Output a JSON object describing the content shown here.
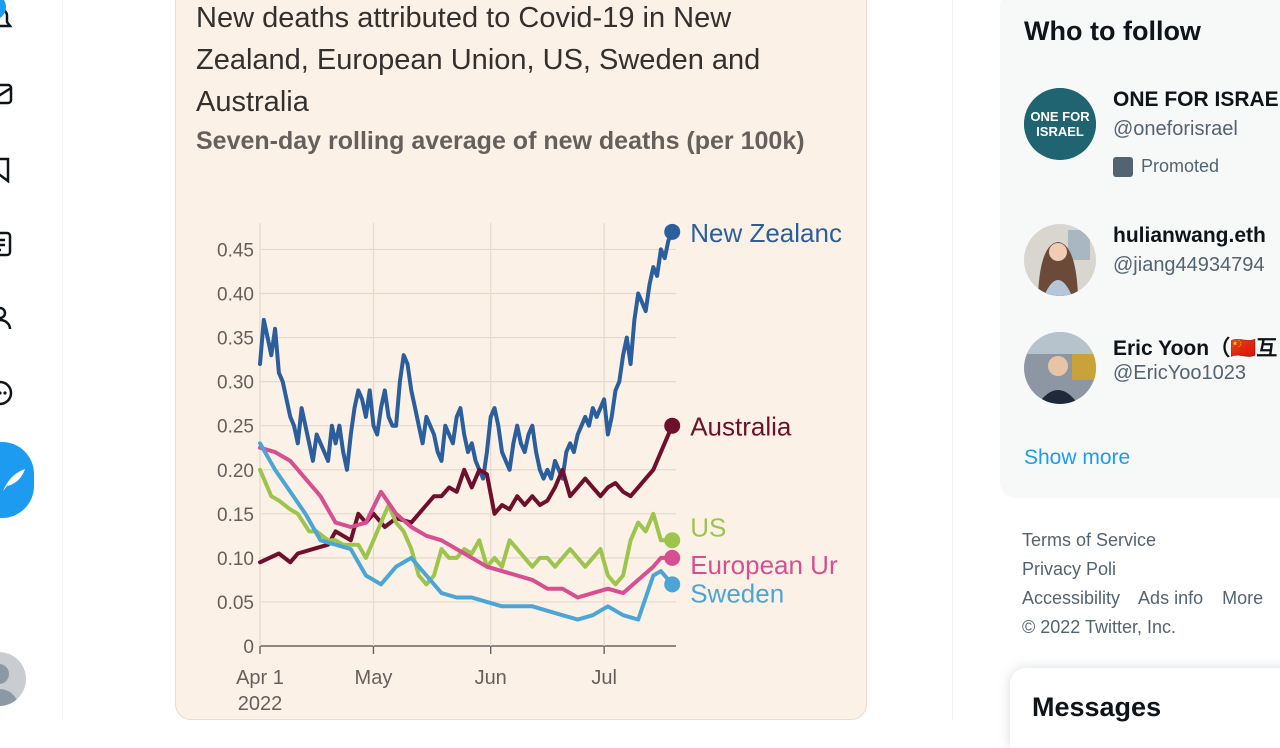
{
  "nav": {
    "notification_count": "1",
    "icons": [
      "bell-icon",
      "envelope-icon",
      "bookmark-icon",
      "list-icon",
      "person-icon",
      "more-circle-icon",
      "tweet-feather-icon"
    ]
  },
  "chart_data": {
    "type": "line",
    "title": "New deaths attributed to Covid-19 in New Zealand, European Union, US, Sweden and Australia",
    "subtitle": "Seven-day rolling average of new deaths (per 100k)",
    "x_ticks": [
      "Apr 1\n2022",
      "May",
      "Jun",
      "Jul"
    ],
    "x_tick_days": [
      0,
      30,
      61,
      91
    ],
    "x_range_days": [
      0,
      110
    ],
    "ylim": [
      0,
      0.48
    ],
    "y_ticks": [
      "0",
      "0.05",
      "0.10",
      "0.15",
      "0.20",
      "0.25",
      "0.30",
      "0.35",
      "0.40",
      "0.45"
    ],
    "y_tick_values": [
      0,
      0.05,
      0.1,
      0.15,
      0.2,
      0.25,
      0.3,
      0.35,
      0.4,
      0.45
    ],
    "grid": true,
    "series": [
      {
        "name": "New Zealand",
        "label": "New Zealanc",
        "color": "#2a5e9c",
        "x": [
          0,
          1,
          2,
          3,
          4,
          5,
          6,
          7,
          8,
          9,
          10,
          11,
          12,
          13,
          14,
          15,
          16,
          17,
          18,
          19,
          20,
          21,
          22,
          23,
          24,
          25,
          26,
          27,
          28,
          29,
          30,
          31,
          32,
          33,
          34,
          35,
          36,
          37,
          38,
          39,
          40,
          41,
          42,
          43,
          44,
          45,
          46,
          47,
          48,
          49,
          50,
          51,
          52,
          53,
          54,
          55,
          56,
          57,
          58,
          59,
          60,
          61,
          62,
          63,
          64,
          65,
          66,
          67,
          68,
          69,
          70,
          71,
          72,
          73,
          74,
          75,
          76,
          77,
          78,
          79,
          80,
          81,
          82,
          83,
          84,
          85,
          86,
          87,
          88,
          89,
          90,
          91,
          92,
          93,
          94,
          95,
          96,
          97,
          98,
          99,
          100,
          101,
          102,
          103,
          104,
          105,
          106,
          107,
          108,
          109
        ],
        "values": [
          0.32,
          0.37,
          0.35,
          0.33,
          0.36,
          0.31,
          0.3,
          0.28,
          0.26,
          0.25,
          0.23,
          0.27,
          0.25,
          0.23,
          0.21,
          0.24,
          0.23,
          0.22,
          0.21,
          0.25,
          0.23,
          0.25,
          0.22,
          0.2,
          0.24,
          0.27,
          0.29,
          0.28,
          0.26,
          0.29,
          0.25,
          0.24,
          0.27,
          0.29,
          0.26,
          0.25,
          0.25,
          0.3,
          0.33,
          0.32,
          0.29,
          0.27,
          0.25,
          0.23,
          0.26,
          0.25,
          0.24,
          0.22,
          0.21,
          0.25,
          0.24,
          0.23,
          0.26,
          0.27,
          0.24,
          0.22,
          0.23,
          0.21,
          0.2,
          0.19,
          0.22,
          0.26,
          0.27,
          0.25,
          0.22,
          0.21,
          0.2,
          0.23,
          0.25,
          0.23,
          0.22,
          0.24,
          0.25,
          0.22,
          0.2,
          0.19,
          0.2,
          0.19,
          0.21,
          0.2,
          0.19,
          0.22,
          0.23,
          0.22,
          0.24,
          0.25,
          0.26,
          0.25,
          0.27,
          0.26,
          0.27,
          0.28,
          0.24,
          0.26,
          0.29,
          0.3,
          0.33,
          0.35,
          0.32,
          0.37,
          0.4,
          0.39,
          0.38,
          0.41,
          0.43,
          0.42,
          0.45,
          0.44,
          0.46,
          0.47
        ]
      },
      {
        "name": "Australia",
        "label": "Australia",
        "color": "#6e0f2b",
        "x": [
          0,
          5,
          8,
          10,
          14,
          18,
          20,
          24,
          26,
          28,
          30,
          33,
          36,
          40,
          44,
          46,
          48,
          50,
          52,
          54,
          56,
          58,
          60,
          62,
          64,
          66,
          68,
          70,
          72,
          74,
          76,
          78,
          80,
          82,
          84,
          86,
          88,
          90,
          92,
          94,
          96,
          98,
          100,
          102,
          104,
          106,
          109
        ],
        "values": [
          0.095,
          0.105,
          0.095,
          0.105,
          0.11,
          0.115,
          0.13,
          0.12,
          0.15,
          0.14,
          0.15,
          0.135,
          0.145,
          0.14,
          0.16,
          0.17,
          0.17,
          0.18,
          0.175,
          0.2,
          0.18,
          0.2,
          0.195,
          0.15,
          0.16,
          0.155,
          0.17,
          0.16,
          0.17,
          0.16,
          0.165,
          0.18,
          0.2,
          0.17,
          0.18,
          0.19,
          0.18,
          0.17,
          0.18,
          0.185,
          0.175,
          0.17,
          0.18,
          0.19,
          0.2,
          0.22,
          0.25
        ]
      },
      {
        "name": "US",
        "label": "US",
        "color": "#9dc44d",
        "x": [
          0,
          3,
          5,
          8,
          10,
          13,
          15,
          18,
          20,
          22,
          24,
          26,
          28,
          30,
          32,
          34,
          36,
          38,
          40,
          42,
          44,
          46,
          48,
          50,
          52,
          54,
          56,
          58,
          60,
          62,
          64,
          66,
          68,
          70,
          72,
          74,
          76,
          78,
          80,
          82,
          84,
          86,
          88,
          90,
          92,
          94,
          96,
          98,
          100,
          102,
          104,
          106,
          109
        ],
        "values": [
          0.2,
          0.17,
          0.165,
          0.155,
          0.15,
          0.13,
          0.13,
          0.12,
          0.12,
          0.115,
          0.115,
          0.115,
          0.1,
          0.12,
          0.14,
          0.16,
          0.14,
          0.13,
          0.11,
          0.08,
          0.07,
          0.08,
          0.11,
          0.1,
          0.1,
          0.11,
          0.105,
          0.12,
          0.09,
          0.1,
          0.09,
          0.12,
          0.11,
          0.1,
          0.09,
          0.1,
          0.1,
          0.09,
          0.1,
          0.11,
          0.1,
          0.09,
          0.1,
          0.11,
          0.08,
          0.07,
          0.08,
          0.12,
          0.14,
          0.13,
          0.15,
          0.12,
          0.12
        ]
      },
      {
        "name": "European Union",
        "label": "European Ur",
        "color": "#d84f91",
        "x": [
          0,
          4,
          8,
          12,
          16,
          20,
          24,
          28,
          32,
          36,
          40,
          44,
          48,
          52,
          56,
          60,
          64,
          68,
          72,
          76,
          80,
          84,
          88,
          92,
          96,
          100,
          104,
          106,
          109
        ],
        "values": [
          0.225,
          0.22,
          0.21,
          0.19,
          0.17,
          0.14,
          0.135,
          0.14,
          0.175,
          0.15,
          0.135,
          0.125,
          0.12,
          0.11,
          0.1,
          0.09,
          0.085,
          0.08,
          0.075,
          0.065,
          0.065,
          0.055,
          0.06,
          0.065,
          0.06,
          0.075,
          0.09,
          0.1,
          0.1
        ]
      },
      {
        "name": "Sweden",
        "label": "Sweden",
        "color": "#4ba6d6",
        "x": [
          0,
          4,
          8,
          12,
          16,
          20,
          24,
          28,
          32,
          36,
          40,
          44,
          48,
          52,
          56,
          60,
          64,
          68,
          72,
          76,
          80,
          84,
          88,
          92,
          96,
          100,
          104,
          106,
          109
        ],
        "values": [
          0.23,
          0.2,
          0.175,
          0.15,
          0.12,
          0.115,
          0.11,
          0.08,
          0.07,
          0.09,
          0.1,
          0.08,
          0.06,
          0.055,
          0.055,
          0.05,
          0.045,
          0.045,
          0.045,
          0.04,
          0.035,
          0.03,
          0.035,
          0.045,
          0.035,
          0.03,
          0.08,
          0.085,
          0.07
        ]
      }
    ]
  },
  "sidebar": {
    "who_to_follow": "Who to follow",
    "accounts": [
      {
        "name": "ONE FOR ISRAE",
        "handle": "@oneforisrael",
        "promoted": "Promoted",
        "avatar_text": "ONE FOR ISRAEL"
      },
      {
        "name": "hulianwang.eth",
        "handle": "@jiang44934794"
      },
      {
        "name": "Eric Yoon（🇨🇳互",
        "handle": "@EricYoo1023"
      }
    ],
    "show_more": "Show more"
  },
  "footer": {
    "links": [
      "Terms of Service",
      "Privacy Poli",
      "Accessibility",
      "Ads info",
      "More"
    ],
    "copyright": "© 2022 Twitter, Inc."
  },
  "messages": {
    "title": "Messages"
  }
}
